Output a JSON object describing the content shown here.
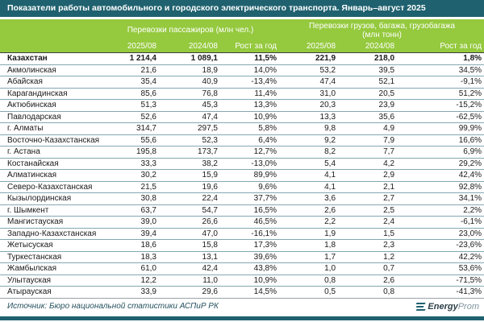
{
  "title": "Показатели работы автомобильного и городского электрического транспорта. Январь–август 2025",
  "colors": {
    "teal_bar": "#1f616f",
    "header_green": "#95c93e",
    "row_separator": "#84a7b2",
    "source_text": "#24505e"
  },
  "chart_data": {
    "type": "table",
    "title": "Показатели работы автомобильного и городского электрического транспорта. Январь–август 2025",
    "column_groups": [
      {
        "label": "Перевозки пассажиров (млн чел.)",
        "span": 3
      },
      {
        "label": "Перевозки грузов, багажа, грузобагажа (млн тонн)",
        "span": 3
      }
    ],
    "sub_headers": [
      "2025/08",
      "2024/08",
      "Рост за год",
      "2025/08",
      "2024/08",
      "Рост за год"
    ],
    "rows": [
      {
        "region": "Казахстан",
        "bold": true,
        "pass_2025": "1 214,4",
        "pass_2024": "1 089,1",
        "pass_growth": "11,5%",
        "cargo_2025": "221,9",
        "cargo_2024": "218,0",
        "cargo_growth": "1,8%"
      },
      {
        "region": "Акмолинская",
        "bold": false,
        "pass_2025": "21,6",
        "pass_2024": "18,9",
        "pass_growth": "14,0%",
        "cargo_2025": "53,2",
        "cargo_2024": "39,5",
        "cargo_growth": "34,5%"
      },
      {
        "region": "Абайская",
        "bold": false,
        "pass_2025": "35,4",
        "pass_2024": "40,9",
        "pass_growth": "-13,4%",
        "cargo_2025": "47,4",
        "cargo_2024": "52,1",
        "cargo_growth": "-9,1%"
      },
      {
        "region": "Карагандинская",
        "bold": false,
        "pass_2025": "85,6",
        "pass_2024": "76,8",
        "pass_growth": "11,4%",
        "cargo_2025": "31,0",
        "cargo_2024": "20,5",
        "cargo_growth": "51,2%"
      },
      {
        "region": "Актюбинская",
        "bold": false,
        "pass_2025": "51,3",
        "pass_2024": "45,3",
        "pass_growth": "13,3%",
        "cargo_2025": "20,3",
        "cargo_2024": "23,9",
        "cargo_growth": "-15,2%"
      },
      {
        "region": "Павлодарская",
        "bold": false,
        "pass_2025": "52,6",
        "pass_2024": "47,4",
        "pass_growth": "10,9%",
        "cargo_2025": "13,3",
        "cargo_2024": "35,6",
        "cargo_growth": "-62,5%"
      },
      {
        "region": "г. Алматы",
        "bold": false,
        "pass_2025": "314,7",
        "pass_2024": "297,5",
        "pass_growth": "5,8%",
        "cargo_2025": "9,8",
        "cargo_2024": "4,9",
        "cargo_growth": "99,9%"
      },
      {
        "region": "Восточно-Казахстанская",
        "bold": false,
        "pass_2025": "55,6",
        "pass_2024": "52,3",
        "pass_growth": "6,4%",
        "cargo_2025": "9,2",
        "cargo_2024": "7,9",
        "cargo_growth": "16,6%"
      },
      {
        "region": "г. Астана",
        "bold": false,
        "pass_2025": "195,8",
        "pass_2024": "173,7",
        "pass_growth": "12,7%",
        "cargo_2025": "8,2",
        "cargo_2024": "7,7",
        "cargo_growth": "6,9%"
      },
      {
        "region": "Костанайская",
        "bold": false,
        "pass_2025": "33,3",
        "pass_2024": "38,2",
        "pass_growth": "-13,0%",
        "cargo_2025": "5,4",
        "cargo_2024": "4,2",
        "cargo_growth": "29,2%"
      },
      {
        "region": "Алматинская",
        "bold": false,
        "pass_2025": "30,2",
        "pass_2024": "15,9",
        "pass_growth": "89,9%",
        "cargo_2025": "4,1",
        "cargo_2024": "2,9",
        "cargo_growth": "42,4%"
      },
      {
        "region": "Северо-Казахстанская",
        "bold": false,
        "pass_2025": "21,5",
        "pass_2024": "19,6",
        "pass_growth": "9,6%",
        "cargo_2025": "4,1",
        "cargo_2024": "2,1",
        "cargo_growth": "92,8%"
      },
      {
        "region": "Кызылординская",
        "bold": false,
        "pass_2025": "30,8",
        "pass_2024": "22,4",
        "pass_growth": "37,7%",
        "cargo_2025": "3,6",
        "cargo_2024": "2,7",
        "cargo_growth": "34,1%"
      },
      {
        "region": "г. Шымкент",
        "bold": false,
        "pass_2025": "63,7",
        "pass_2024": "54,7",
        "pass_growth": "16,5%",
        "cargo_2025": "2,6",
        "cargo_2024": "2,5",
        "cargo_growth": "2,2%"
      },
      {
        "region": "Мангистауская",
        "bold": false,
        "pass_2025": "39,0",
        "pass_2024": "26,6",
        "pass_growth": "46,5%",
        "cargo_2025": "2,2",
        "cargo_2024": "2,4",
        "cargo_growth": "-6,1%"
      },
      {
        "region": "Западно-Казахстанская",
        "bold": false,
        "pass_2025": "39,4",
        "pass_2024": "47,0",
        "pass_growth": "-16,1%",
        "cargo_2025": "1,9",
        "cargo_2024": "1,5",
        "cargo_growth": "23,0%"
      },
      {
        "region": "Жетысуская",
        "bold": false,
        "pass_2025": "18,6",
        "pass_2024": "15,8",
        "pass_growth": "17,3%",
        "cargo_2025": "1,8",
        "cargo_2024": "2,3",
        "cargo_growth": "-23,6%"
      },
      {
        "region": "Туркестанская",
        "bold": false,
        "pass_2025": "18,3",
        "pass_2024": "13,1",
        "pass_growth": "39,6%",
        "cargo_2025": "1,7",
        "cargo_2024": "1,2",
        "cargo_growth": "42,2%"
      },
      {
        "region": "Жамбылская",
        "bold": false,
        "pass_2025": "61,0",
        "pass_2024": "42,4",
        "pass_growth": "43,8%",
        "cargo_2025": "1,0",
        "cargo_2024": "0,7",
        "cargo_growth": "53,6%"
      },
      {
        "region": "Улытауская",
        "bold": false,
        "pass_2025": "12,2",
        "pass_2024": "11,0",
        "pass_growth": "10,9%",
        "cargo_2025": "0,8",
        "cargo_2024": "2,6",
        "cargo_growth": "-71,5%"
      },
      {
        "region": "Атырауская",
        "bold": false,
        "pass_2025": "33,9",
        "pass_2024": "29,6",
        "pass_growth": "14,5%",
        "cargo_2025": "0,5",
        "cargo_2024": "0,8",
        "cargo_growth": "-41,3%"
      }
    ]
  },
  "footer": {
    "source": "Источник: Бюро национальной статистики АСПиР РК",
    "logo": {
      "icon": "energyprom-icon",
      "text_bold": "Energy",
      "text_light": "Prom"
    }
  }
}
